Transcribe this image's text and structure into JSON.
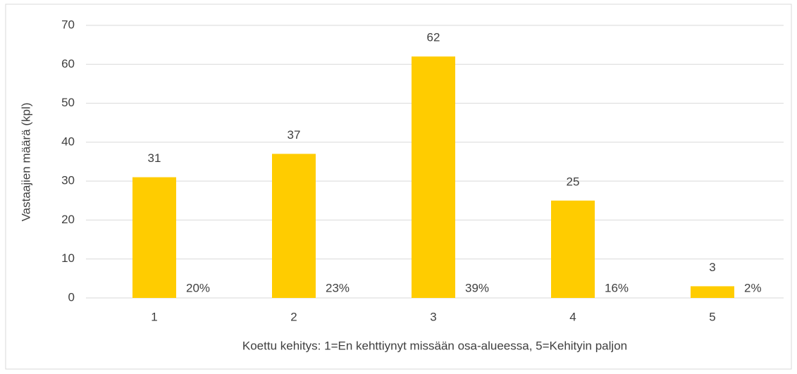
{
  "chart_data": {
    "type": "bar",
    "categories": [
      "1",
      "2",
      "3",
      "4",
      "5"
    ],
    "series": [
      {
        "color": "#ffcc00",
        "values": [
          31,
          37,
          62,
          25,
          3
        ]
      },
      {
        "values": [
          20,
          23,
          39,
          16,
          2
        ],
        "value_labels": [
          "20%",
          "23%",
          "39%",
          "16%",
          "2%"
        ]
      }
    ],
    "ylabel": "Vastaajien määrä (kpl)",
    "xlabel": "Koettu kehitys: 1=En kehttiynyt missään osa-alueessa, 5=Kehityin paljon",
    "ylim": [
      0,
      70
    ],
    "yticks": [
      0,
      10,
      20,
      30,
      40,
      50,
      60,
      70
    ],
    "grid": true
  }
}
